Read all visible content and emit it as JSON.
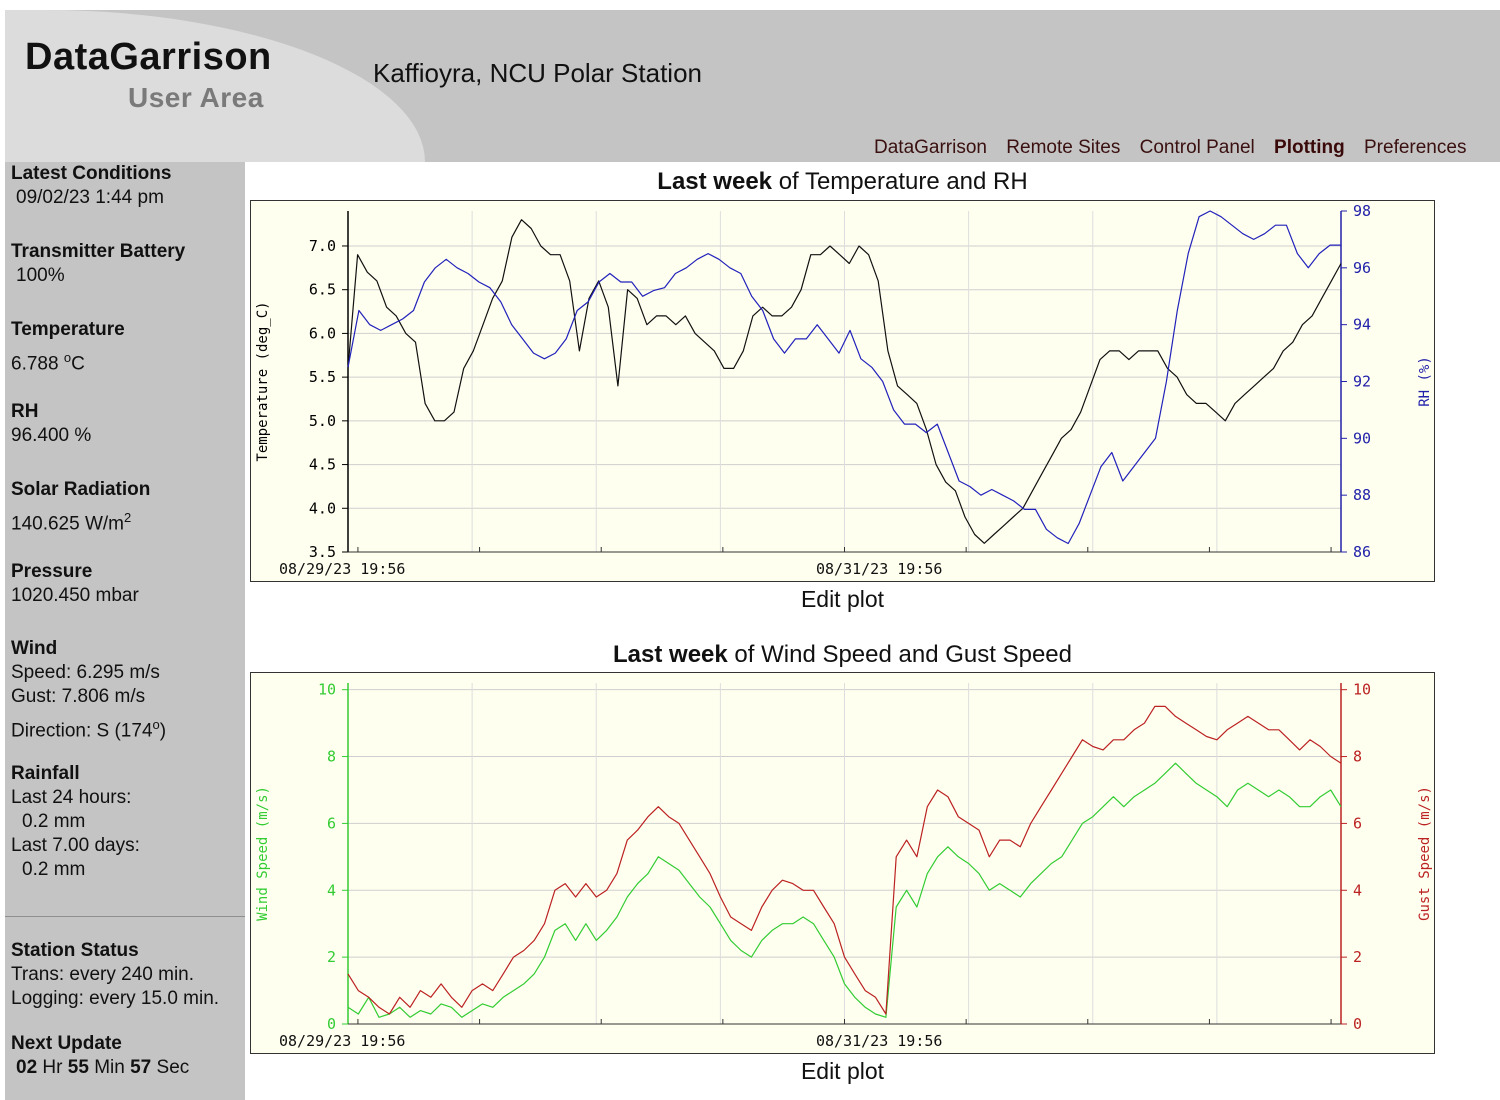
{
  "header": {
    "logo_title": "DataGarrison",
    "logo_subtitle": "User Area",
    "station_name": "Kaffioyra, NCU Polar Station",
    "nav": [
      "DataGarrison",
      "Remote Sites",
      "Control Panel",
      "Plotting",
      "Preferences"
    ],
    "active_nav": "Plotting"
  },
  "sidebar": {
    "latest_label": "Latest Conditions",
    "latest_value": "09/02/23 1:44 pm",
    "battery_label": "Transmitter Battery",
    "battery_value": "100%",
    "temp_label": "Temperature",
    "temp_value": "6.788",
    "temp_unit_sup": "o",
    "temp_unit": "C",
    "rh_label": "RH",
    "rh_value": "96.400 %",
    "solar_label": "Solar Radiation",
    "solar_value": "140.625 W/m",
    "solar_unit_sup": "2",
    "pressure_label": "Pressure",
    "pressure_value": "1020.450 mbar",
    "wind_label": "Wind",
    "wind_speed": "Speed: 6.295 m/s",
    "wind_gust": "Gust: 7.806 m/s",
    "wind_direction": "Direction: S (174",
    "wind_direction_sup": "o",
    "wind_direction_end": ")",
    "rain_label": "Rainfall",
    "rain_24h_label": "Last 24 hours:",
    "rain_24h_value": "0.2 mm",
    "rain_7d_label": "Last 7.00 days:",
    "rain_7d_value": "0.2 mm",
    "status_label": "Station Status",
    "status_trans": "Trans: every 240 min.",
    "status_logging": "Logging: every 15.0 min.",
    "update_label": "Next Update",
    "update_hr": "02",
    "update_hr_unit": "Hr",
    "update_min": "55",
    "update_min_unit": "Min",
    "update_sec": "57",
    "update_sec_unit": "Sec"
  },
  "charts": {
    "edit_label": "Edit plot"
  },
  "chart_data": [
    {
      "type": "line",
      "title_bold": "Last week",
      "title_rest": "of Temperature and RH",
      "xlabel": "",
      "x_tick_labels": [
        "08/29/23 19:56",
        "08/31/23 19:56"
      ],
      "y_left": {
        "label": "Temperature (deg_C)",
        "lim": [
          3.5,
          7.4
        ],
        "ticks": [
          "3.5",
          "4.0",
          "4.5",
          "5.0",
          "5.5",
          "6.0",
          "6.5",
          "7.0"
        ],
        "color": "#000000"
      },
      "y_right": {
        "label": "RH (%)",
        "lim": [
          86,
          98
        ],
        "ticks": [
          "86",
          "88",
          "90",
          "92",
          "94",
          "96",
          "98"
        ],
        "color": "#2222aa"
      },
      "grid": true,
      "series": [
        {
          "axis": "left",
          "color": "#111111",
          "values": [
            5.6,
            6.9,
            6.7,
            6.6,
            6.3,
            6.2,
            6.0,
            5.9,
            5.2,
            5.0,
            5.0,
            5.1,
            5.6,
            5.8,
            6.1,
            6.4,
            6.6,
            7.1,
            7.3,
            7.2,
            7.0,
            6.9,
            6.9,
            6.6,
            5.8,
            6.4,
            6.6,
            6.3,
            5.4,
            6.5,
            6.4,
            6.1,
            6.2,
            6.2,
            6.1,
            6.2,
            6.0,
            5.9,
            5.8,
            5.6,
            5.6,
            5.8,
            6.2,
            6.3,
            6.2,
            6.2,
            6.3,
            6.5,
            6.9,
            6.9,
            7.0,
            6.9,
            6.8,
            7.0,
            6.9,
            6.6,
            5.8,
            5.4,
            5.3,
            5.2,
            4.9,
            4.5,
            4.3,
            4.2,
            3.9,
            3.7,
            3.6,
            3.7,
            3.8,
            3.9,
            4.0,
            4.2,
            4.4,
            4.6,
            4.8,
            4.9,
            5.1,
            5.4,
            5.7,
            5.8,
            5.8,
            5.7,
            5.8,
            5.8,
            5.8,
            5.6,
            5.5,
            5.3,
            5.2,
            5.2,
            5.1,
            5.0,
            5.2,
            5.3,
            5.4,
            5.5,
            5.6,
            5.8,
            5.9,
            6.1,
            6.2,
            6.4,
            6.6,
            6.8
          ]
        },
        {
          "axis": "right",
          "color": "#2222bb",
          "values": [
            92.5,
            94.5,
            94.0,
            93.8,
            94.0,
            94.2,
            94.5,
            95.5,
            96.0,
            96.3,
            96.0,
            95.8,
            95.5,
            95.3,
            94.8,
            94.0,
            93.5,
            93.0,
            92.8,
            93.0,
            93.5,
            94.5,
            94.8,
            95.5,
            95.8,
            95.5,
            95.5,
            95.0,
            95.2,
            95.3,
            95.8,
            96.0,
            96.3,
            96.5,
            96.3,
            96.0,
            95.8,
            95.0,
            94.5,
            93.5,
            93.0,
            93.5,
            93.5,
            94.0,
            93.5,
            93.0,
            93.8,
            92.8,
            92.5,
            92.0,
            91.0,
            90.5,
            90.5,
            90.2,
            90.5,
            89.5,
            88.5,
            88.3,
            88.0,
            88.2,
            88.0,
            87.8,
            87.5,
            87.5,
            86.8,
            86.5,
            86.3,
            87.0,
            88.0,
            89.0,
            89.5,
            88.5,
            89.0,
            89.5,
            90.0,
            92.0,
            94.5,
            96.5,
            97.8,
            98.0,
            97.8,
            97.5,
            97.2,
            97.0,
            97.2,
            97.5,
            97.5,
            96.5,
            96.0,
            96.5,
            96.8,
            96.8
          ]
        }
      ]
    },
    {
      "type": "line",
      "title_bold": "Last week",
      "title_rest": "of Wind Speed and Gust Speed",
      "xlabel": "",
      "x_tick_labels": [
        "08/29/23 19:56",
        "08/31/23 19:56"
      ],
      "y_left": {
        "label": "Wind Speed (m/s)",
        "lim": [
          0,
          10.2
        ],
        "ticks": [
          "0",
          "2",
          "4",
          "6",
          "8",
          "10"
        ],
        "color": "#33cc33"
      },
      "y_right": {
        "label": "Gust Speed (m/s)",
        "lim": [
          0,
          10.2
        ],
        "ticks": [
          "0",
          "2",
          "4",
          "6",
          "8",
          "10"
        ],
        "color": "#bb2222"
      },
      "grid": true,
      "series": [
        {
          "axis": "left",
          "color": "#33cc33",
          "values": [
            0.5,
            0.3,
            0.8,
            0.2,
            0.3,
            0.5,
            0.2,
            0.4,
            0.3,
            0.6,
            0.5,
            0.2,
            0.4,
            0.6,
            0.5,
            0.8,
            1.0,
            1.2,
            1.5,
            2.0,
            2.8,
            3.0,
            2.5,
            3.0,
            2.5,
            2.8,
            3.2,
            3.8,
            4.2,
            4.5,
            5.0,
            4.8,
            4.6,
            4.2,
            3.8,
            3.5,
            3.0,
            2.5,
            2.2,
            2.0,
            2.5,
            2.8,
            3.0,
            3.0,
            3.2,
            3.0,
            2.5,
            2.0,
            1.2,
            0.8,
            0.5,
            0.3,
            0.2,
            3.5,
            4.0,
            3.5,
            4.5,
            5.0,
            5.3,
            5.0,
            4.8,
            4.5,
            4.0,
            4.2,
            4.0,
            3.8,
            4.2,
            4.5,
            4.8,
            5.0,
            5.5,
            6.0,
            6.2,
            6.5,
            6.8,
            6.5,
            6.8,
            7.0,
            7.2,
            7.5,
            7.8,
            7.5,
            7.2,
            7.0,
            6.8,
            6.5,
            7.0,
            7.2,
            7.0,
            6.8,
            7.0,
            6.8,
            6.5,
            6.5,
            6.8,
            7.0,
            6.5
          ]
        },
        {
          "axis": "right",
          "color": "#bb2222",
          "values": [
            1.5,
            1.0,
            0.8,
            0.5,
            0.3,
            0.8,
            0.5,
            1.0,
            0.8,
            1.2,
            0.8,
            0.5,
            1.0,
            1.2,
            1.0,
            1.5,
            2.0,
            2.2,
            2.5,
            3.0,
            4.0,
            4.2,
            3.8,
            4.2,
            3.8,
            4.0,
            4.5,
            5.5,
            5.8,
            6.2,
            6.5,
            6.2,
            6.0,
            5.5,
            5.0,
            4.5,
            3.8,
            3.2,
            3.0,
            2.8,
            3.5,
            4.0,
            4.3,
            4.2,
            4.0,
            4.0,
            3.5,
            3.0,
            2.0,
            1.5,
            1.0,
            0.8,
            0.3,
            5.0,
            5.5,
            5.0,
            6.5,
            7.0,
            6.8,
            6.2,
            6.0,
            5.8,
            5.0,
            5.5,
            5.5,
            5.3,
            6.0,
            6.5,
            7.0,
            7.5,
            8.0,
            8.5,
            8.3,
            8.2,
            8.5,
            8.5,
            8.8,
            9.0,
            9.5,
            9.5,
            9.2,
            9.0,
            8.8,
            8.6,
            8.5,
            8.8,
            9.0,
            9.2,
            9.0,
            8.8,
            8.8,
            8.5,
            8.2,
            8.5,
            8.3,
            8.0,
            7.8
          ]
        }
      ]
    }
  ]
}
